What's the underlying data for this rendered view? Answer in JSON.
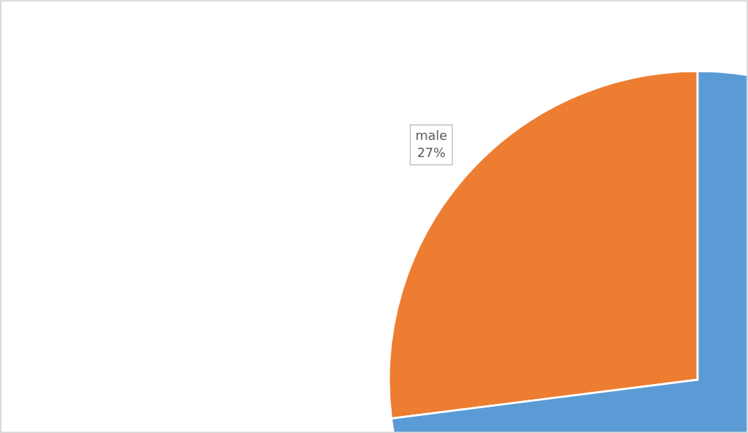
{
  "chart_data": {
    "type": "pie",
    "categories": [
      "male",
      null
    ],
    "values": [
      27,
      73
    ],
    "colors": [
      "#ed7d31",
      "#5b9bd5"
    ],
    "value_labels": [
      "27%",
      null
    ]
  }
}
